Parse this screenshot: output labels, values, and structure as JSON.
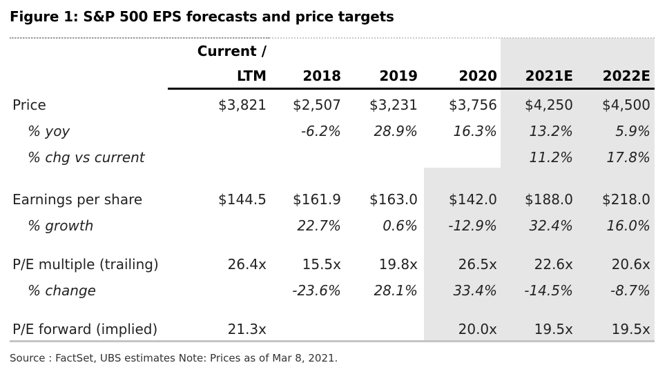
{
  "title": "Figure 1: S&P 500 EPS forecasts and price targets",
  "columns": {
    "current_line1": "Current /",
    "current_line2": "LTM",
    "years": [
      "2018",
      "2019",
      "2020",
      "2021E",
      "2022E"
    ]
  },
  "rows": [
    {
      "label": "Price",
      "italic": false,
      "values": [
        "$3,821",
        "$2,507",
        "$3,231",
        "$3,756",
        "$4,250",
        "$4,500"
      ]
    },
    {
      "label": "% yoy",
      "italic": true,
      "values": [
        "",
        "-6.2%",
        "28.9%",
        "16.3%",
        "13.2%",
        "5.9%"
      ]
    },
    {
      "label": "% chg vs current",
      "italic": true,
      "values": [
        "",
        "",
        "",
        "",
        "11.2%",
        "17.8%"
      ]
    },
    {
      "label": "Earnings per share",
      "italic": false,
      "values": [
        "$144.5",
        "$161.9",
        "$163.0",
        "$142.0",
        "$188.0",
        "$218.0"
      ]
    },
    {
      "label": "% growth",
      "italic": true,
      "values": [
        "",
        "22.7%",
        "0.6%",
        "-12.9%",
        "32.4%",
        "16.0%"
      ]
    },
    {
      "label": "P/E multiple (trailing)",
      "italic": false,
      "values": [
        "26.4x",
        "15.5x",
        "19.8x",
        "26.5x",
        "22.6x",
        "20.6x"
      ]
    },
    {
      "label": "% change",
      "italic": true,
      "values": [
        "",
        "-23.6%",
        "28.1%",
        "33.4%",
        "-14.5%",
        "-8.7%"
      ]
    },
    {
      "label": "P/E forward (implied)",
      "italic": false,
      "values": [
        "21.3x",
        "",
        "",
        "20.0x",
        "19.5x",
        "19.5x"
      ]
    }
  ],
  "source": "Source : FactSet, UBS estimates Note: Prices as of Mar 8, 2021.",
  "colors": {
    "shade": "#ececec",
    "header_rule": "#000000",
    "text": "#222222"
  }
}
